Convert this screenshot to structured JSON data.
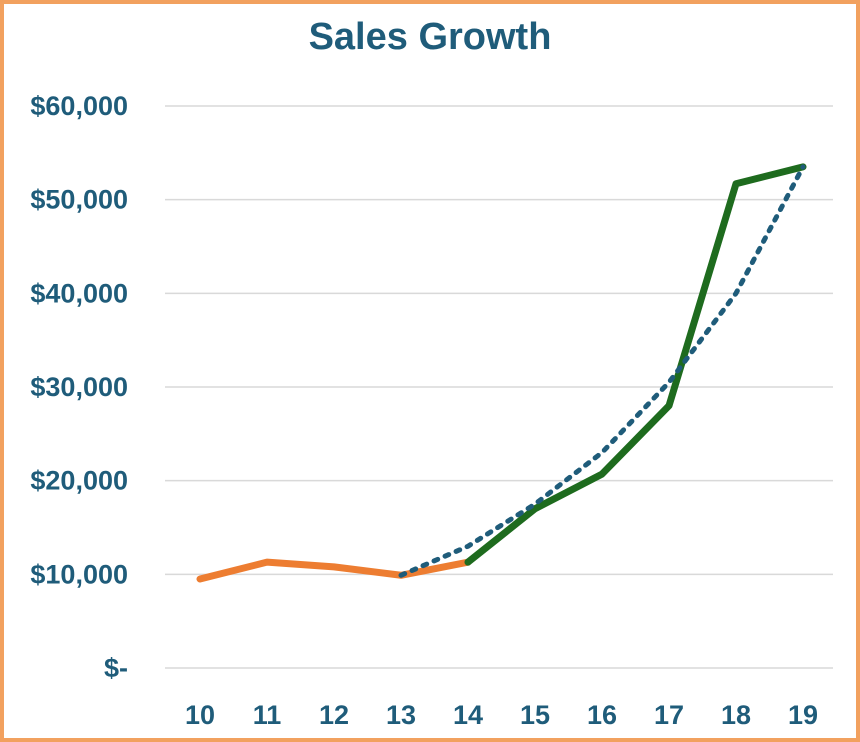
{
  "chart_data": {
    "type": "line",
    "title": "Sales Growth",
    "xlabel": "",
    "ylabel": "",
    "categories": [
      "10",
      "11",
      "12",
      "13",
      "14",
      "15",
      "16",
      "17",
      "18",
      "19"
    ],
    "y_ticks": [
      "$-",
      "$10,000",
      "$20,000",
      "$30,000",
      "$40,000",
      "$50,000",
      "$60,000"
    ],
    "ylim": [
      0,
      60000
    ],
    "grid": true,
    "legend": "none",
    "series": [
      {
        "color": "#ED7D31",
        "style": "solid",
        "points": [
          {
            "x": "10",
            "y": 9500
          },
          {
            "x": "11",
            "y": 11300
          },
          {
            "x": "12",
            "y": 10800
          },
          {
            "x": "13",
            "y": 9900
          },
          {
            "x": "14",
            "y": 11300
          }
        ]
      },
      {
        "color": "#1E6B1E",
        "style": "solid",
        "points": [
          {
            "x": "14",
            "y": 11300
          },
          {
            "x": "15",
            "y": 17000
          },
          {
            "x": "16",
            "y": 20700
          },
          {
            "x": "17",
            "y": 28000
          },
          {
            "x": "18",
            "y": 51700
          },
          {
            "x": "19",
            "y": 53500
          }
        ]
      },
      {
        "color": "#1F5C7A",
        "style": "dotted",
        "points": [
          {
            "x": "13",
            "y": 9900
          },
          {
            "x": "14",
            "y": 13000
          },
          {
            "x": "15",
            "y": 17500
          },
          {
            "x": "16",
            "y": 23000
          },
          {
            "x": "17",
            "y": 30500
          },
          {
            "x": "18",
            "y": 40000
          },
          {
            "x": "19",
            "y": 53500
          }
        ]
      }
    ],
    "colors": {
      "text": "#1F5C7A",
      "grid": "#D9D9D9",
      "border": "#F2A15F"
    }
  }
}
